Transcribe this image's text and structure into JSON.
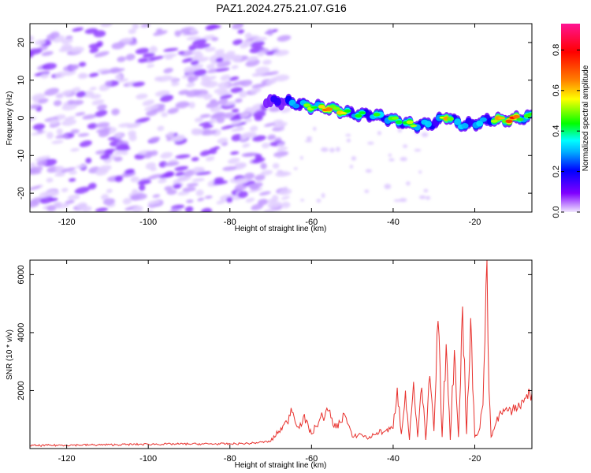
{
  "figure": {
    "title": "PAZ1.2024.275.21.07.G16"
  },
  "chart_data": [
    {
      "type": "heatmap",
      "xlabel": "Height of straight line (km)",
      "ylabel": "Frequency (Hz)",
      "xlim": [
        -129,
        -6
      ],
      "ylim": [
        -25,
        25
      ],
      "x_ticks": [
        -120,
        -100,
        -80,
        -60,
        -40,
        -20
      ],
      "y_ticks": [
        -20,
        -10,
        0,
        10,
        20
      ],
      "colorbar": {
        "label": "Normalized spectral amplitude",
        "ticks": [
          0.0,
          0.2,
          0.4,
          0.6,
          0.8
        ],
        "range": [
          0,
          0.93
        ],
        "colors": [
          "#f0e6ff",
          "#8000ff",
          "#0000ff",
          "#00ffff",
          "#00ff00",
          "#ffff00",
          "#ff8000",
          "#ff0000",
          "#ff1493"
        ]
      },
      "noise_region_x": [
        -129,
        -70
      ],
      "signal_ridge": {
        "x": [
          -71,
          -66,
          -60,
          -55,
          -50,
          -45,
          -40,
          -35,
          -30,
          -27,
          -23,
          -20,
          -16,
          -12,
          -8,
          -6
        ],
        "freq": [
          4.5,
          4.2,
          3.0,
          2.5,
          1.0,
          0.8,
          -0.5,
          -2.0,
          -1.5,
          0.5,
          -2.0,
          -1.5,
          -0.5,
          -0.5,
          0.0,
          0.5
        ],
        "peak_amplitude": [
          0.25,
          0.35,
          0.55,
          0.75,
          0.45,
          0.45,
          0.5,
          0.55,
          0.35,
          0.65,
          0.4,
          0.4,
          0.45,
          0.9,
          0.55,
          0.45
        ]
      }
    },
    {
      "type": "line",
      "xlabel": "Height of straight line (km)",
      "ylabel": "SNR (10 * v/v)",
      "xlim": [
        -129,
        -6
      ],
      "ylim": [
        0,
        6500
      ],
      "x_ticks": [
        -120,
        -100,
        -80,
        -60,
        -40,
        -20
      ],
      "y_ticks": [
        2000,
        4000,
        6000
      ],
      "series": [
        {
          "color": "#e8312d",
          "x": [
            -129,
            -120,
            -110,
            -100,
            -90,
            -80,
            -75,
            -70,
            -68,
            -66,
            -65,
            -63,
            -62,
            -60,
            -58,
            -56,
            -54,
            -52,
            -50,
            -48,
            -46,
            -44,
            -42,
            -40,
            -39,
            -38,
            -37,
            -36,
            -35,
            -34,
            -33,
            -32,
            -31,
            -30,
            -29,
            -28,
            -27,
            -26,
            -25,
            -24,
            -23,
            -22,
            -21,
            -20,
            -19,
            -18,
            -17,
            -16.5,
            -16,
            -15,
            -14,
            -12,
            -10,
            -8,
            -6
          ],
          "y": [
            100,
            120,
            130,
            150,
            160,
            160,
            180,
            250,
            600,
            900,
            1400,
            700,
            1100,
            500,
            1000,
            1300,
            700,
            1200,
            400,
            500,
            350,
            550,
            600,
            700,
            2100,
            500,
            2000,
            300,
            2300,
            400,
            2100,
            300,
            2500,
            600,
            4400,
            400,
            3600,
            300,
            3400,
            400,
            4900,
            500,
            4500,
            400,
            600,
            1500,
            6500,
            2000,
            400,
            800,
            1200,
            1300,
            1500,
            1600,
            1900
          ]
        }
      ]
    }
  ]
}
